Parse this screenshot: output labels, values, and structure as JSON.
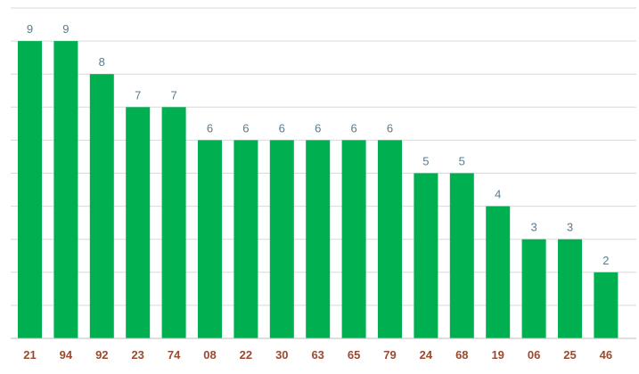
{
  "chart_data": {
    "type": "bar",
    "categories": [
      "21",
      "94",
      "92",
      "23",
      "74",
      "08",
      "22",
      "30",
      "63",
      "65",
      "79",
      "24",
      "68",
      "19",
      "06",
      "25",
      "46"
    ],
    "values": [
      9,
      9,
      8,
      7,
      7,
      6,
      6,
      6,
      6,
      6,
      6,
      5,
      5,
      4,
      3,
      3,
      2
    ],
    "ylim": [
      0,
      10
    ],
    "grid": true,
    "colors": {
      "bar": "#00b050",
      "value_label": "#5b7a8c",
      "category_label": "#9b4a2f"
    }
  }
}
